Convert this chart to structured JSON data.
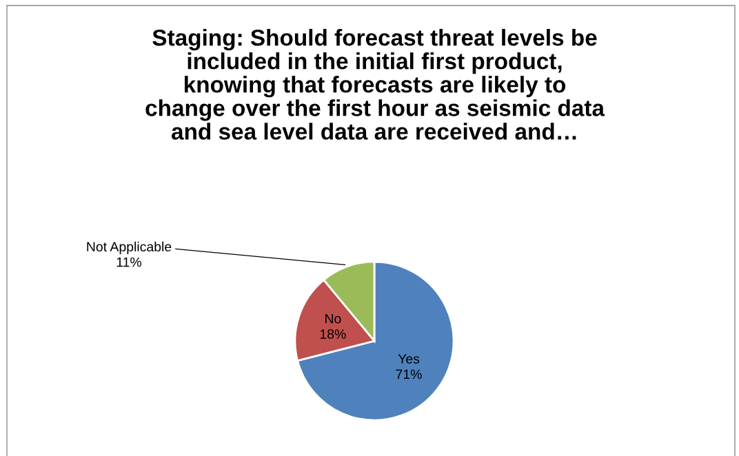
{
  "chart_data": {
    "type": "pie",
    "title": "Staging: Should forecast threat levels be\nincluded in the initial first product,\nknowing that forecasts are likely to\nchange over the first hour as seismic data\nand sea level data are received and…",
    "categories": [
      "Yes",
      "No",
      "Not Applicable"
    ],
    "values": [
      71,
      18,
      11
    ],
    "value_labels": [
      "71%",
      "18%",
      "11%"
    ],
    "colors": [
      "#4f81bd",
      "#c0504d",
      "#9bbb59"
    ],
    "legend": false
  }
}
